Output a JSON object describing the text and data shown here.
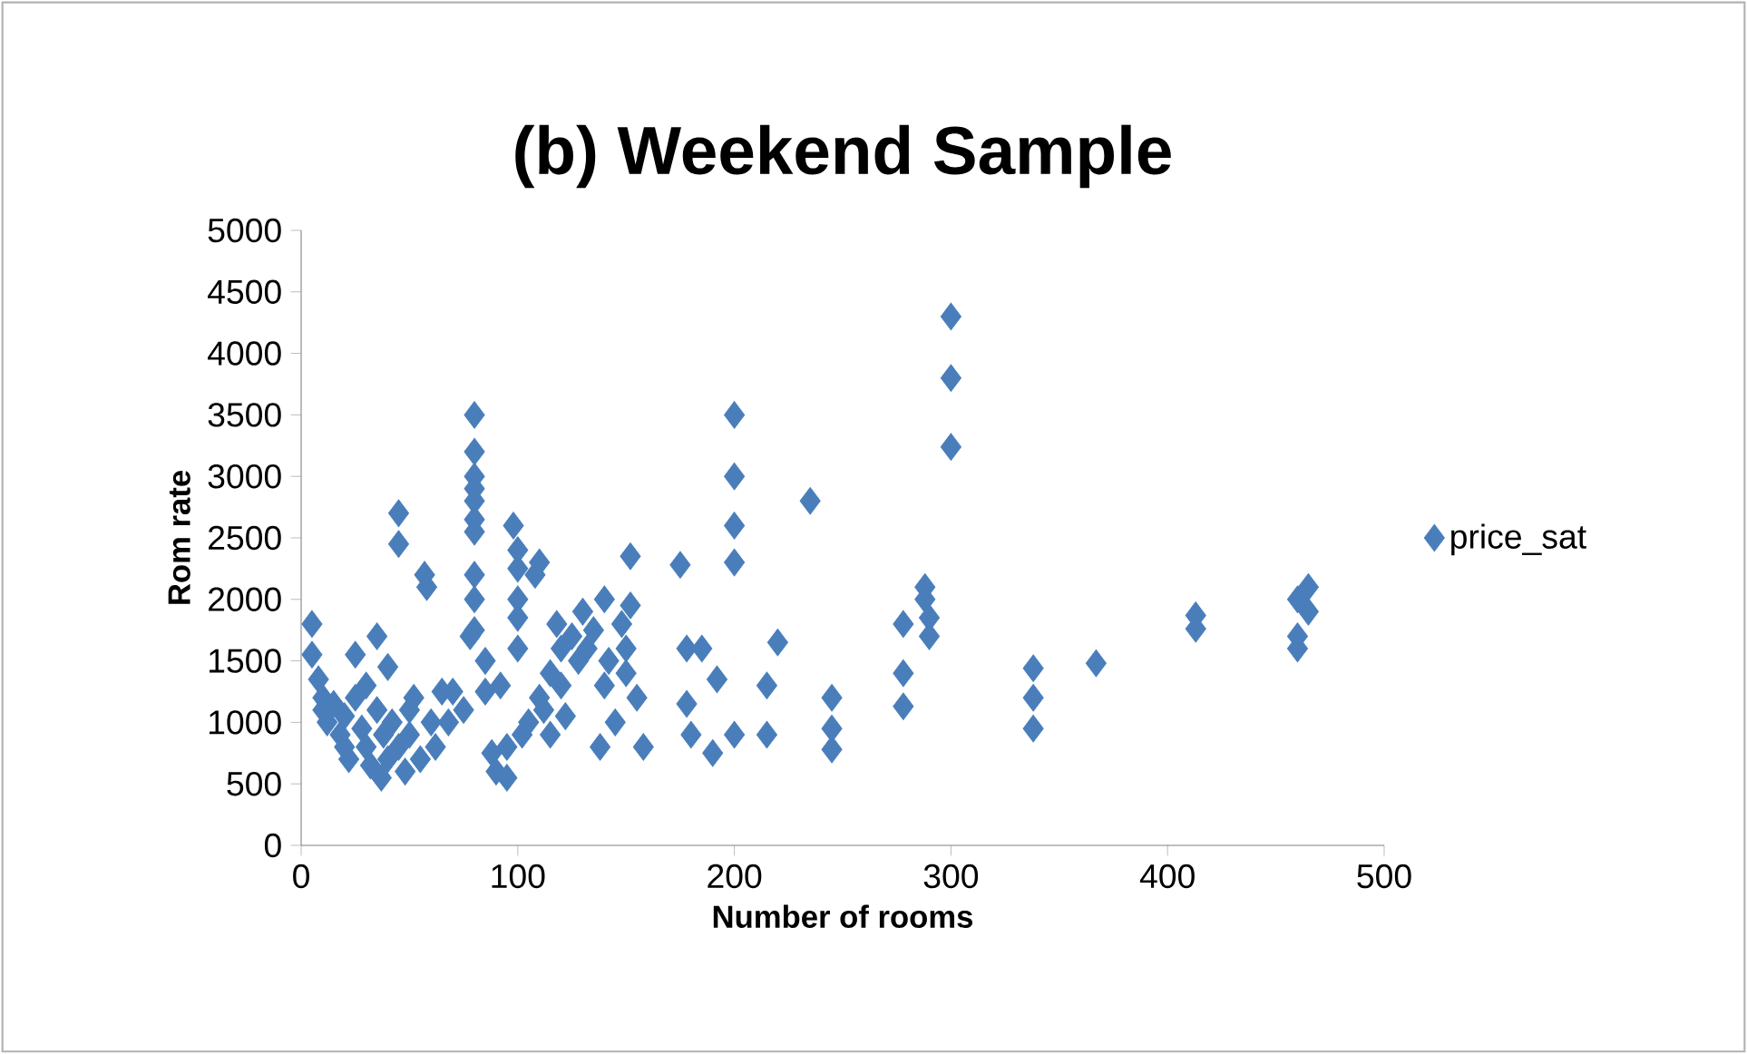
{
  "chart_data": {
    "type": "scatter",
    "title": "(b) Weekend Sample",
    "xlabel": "Number of rooms",
    "ylabel": "Rom rate",
    "xlim": [
      0,
      500
    ],
    "xticks": [
      0,
      100,
      200,
      300,
      400,
      500
    ],
    "ylim": [
      0,
      5000
    ],
    "yticks": [
      0,
      500,
      1000,
      1500,
      2000,
      2500,
      3000,
      3500,
      4000,
      4500,
      5000
    ],
    "grid": false,
    "legend": "right",
    "marker": "diamond",
    "series": [
      {
        "name": "price_sat",
        "color": "#4a7ebb",
        "x": [
          5,
          5,
          8,
          10,
          10,
          12,
          15,
          18,
          20,
          20,
          22,
          25,
          25,
          28,
          30,
          30,
          32,
          35,
          35,
          37,
          38,
          40,
          40,
          42,
          45,
          45,
          45,
          48,
          50,
          50,
          52,
          55,
          57,
          58,
          60,
          62,
          65,
          68,
          70,
          75,
          80,
          80,
          80,
          80,
          80,
          80,
          80,
          80,
          80,
          80,
          78,
          85,
          85,
          88,
          90,
          92,
          95,
          95,
          98,
          100,
          100,
          100,
          100,
          100,
          102,
          105,
          108,
          110,
          110,
          112,
          115,
          115,
          118,
          120,
          120,
          122,
          125,
          128,
          130,
          132,
          135,
          138,
          140,
          140,
          142,
          145,
          148,
          150,
          150,
          152,
          152,
          155,
          158,
          175,
          178,
          178,
          180,
          185,
          190,
          192,
          200,
          200,
          200,
          200,
          200,
          215,
          215,
          220,
          235,
          245,
          245,
          245,
          278,
          278,
          278,
          288,
          288,
          290,
          290,
          300,
          300,
          300,
          338,
          338,
          338,
          367,
          413,
          413,
          460,
          460,
          460,
          465,
          465
        ],
        "values": [
          1800,
          1550,
          1350,
          1200,
          1100,
          1000,
          1150,
          900,
          800,
          1050,
          700,
          1550,
          1200,
          950,
          800,
          1300,
          650,
          1700,
          1100,
          550,
          900,
          1450,
          700,
          1000,
          2700,
          2450,
          800,
          600,
          1100,
          900,
          1200,
          700,
          2200,
          2100,
          1000,
          800,
          1250,
          1000,
          1250,
          1100,
          3500,
          3200,
          3000,
          2900,
          2800,
          2650,
          2550,
          2200,
          2000,
          1750,
          1700,
          1500,
          1250,
          750,
          600,
          1300,
          550,
          800,
          2600,
          2400,
          2250,
          2000,
          1850,
          1600,
          900,
          1000,
          2200,
          2300,
          1200,
          1100,
          1400,
          900,
          1800,
          1600,
          1300,
          1050,
          1700,
          1500,
          1900,
          1600,
          1750,
          800,
          1300,
          2000,
          1500,
          1000,
          1800,
          1600,
          1400,
          2350,
          1950,
          1200,
          800,
          2280,
          1600,
          1150,
          900,
          1600,
          750,
          1350,
          3500,
          3000,
          2600,
          2300,
          900,
          1300,
          900,
          1650,
          2800,
          1200,
          950,
          780,
          1800,
          1400,
          1130,
          2100,
          2000,
          1850,
          1700,
          4300,
          3800,
          3240,
          1440,
          1200,
          950,
          1480,
          1870,
          1760,
          2000,
          1700,
          1600,
          2100,
          1900
        ]
      }
    ]
  }
}
